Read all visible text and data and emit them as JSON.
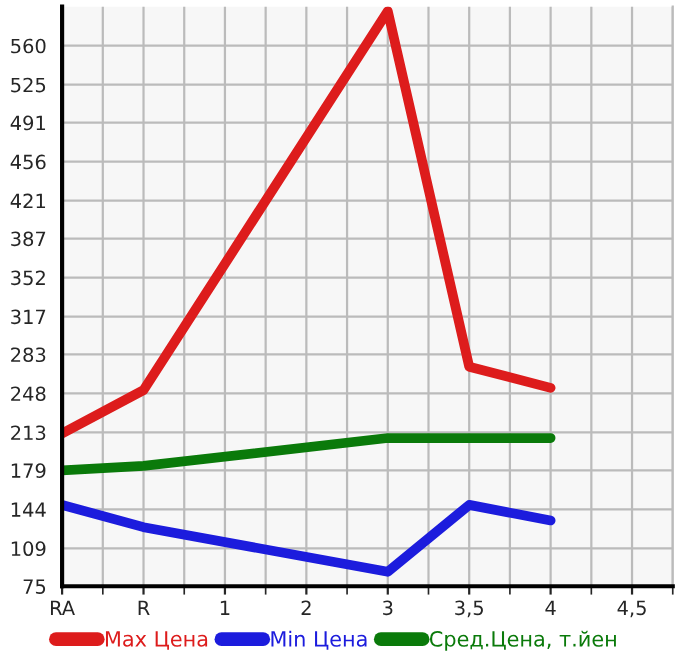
{
  "chart_data": {
    "type": "line",
    "categories": [
      "RA",
      "R",
      "1",
      "2",
      "3",
      "3,5",
      "4",
      "4,5"
    ],
    "series": [
      {
        "name": "Max Цена",
        "color": "#dd1c1c",
        "values": [
          212,
          251,
          null,
          null,
          591,
          272,
          253,
          null
        ]
      },
      {
        "name": "Min Цена",
        "color": "#1c1cdd",
        "values": [
          148,
          128,
          null,
          null,
          88,
          148,
          134,
          null
        ]
      },
      {
        "name": "Сред.Цена, т.йен",
        "color": "#0a7a0a",
        "values": [
          179,
          183,
          null,
          null,
          208,
          208,
          208,
          null
        ]
      }
    ],
    "ylim": [
      75,
      595
    ],
    "yticks": [
      75,
      109,
      144,
      179,
      213,
      248,
      283,
      317,
      352,
      387,
      421,
      456,
      491,
      525,
      560
    ],
    "grid": true,
    "legend": "bottom",
    "marker": "none",
    "line_style": "solid"
  }
}
